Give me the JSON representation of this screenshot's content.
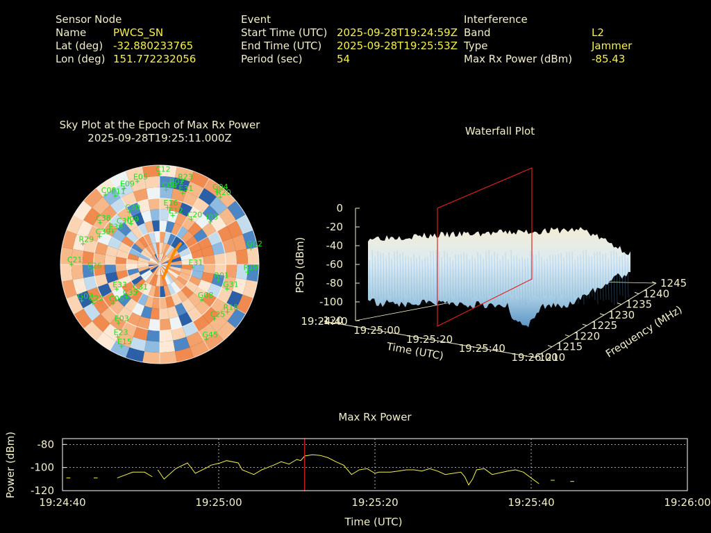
{
  "header": {
    "sensor": {
      "heading": "Sensor Node",
      "rows": [
        {
          "label": "Name",
          "value": "PWCS_SN"
        },
        {
          "label": "Lat (deg)",
          "value": "-32.880233765"
        },
        {
          "label": "Lon (deg)",
          "value": "151.772232056"
        }
      ]
    },
    "event": {
      "heading": "Event",
      "rows": [
        {
          "label": "Start Time (UTC)",
          "value": "2025-09-28T19:24:59Z"
        },
        {
          "label": "End Time (UTC)",
          "value": "2025-09-28T19:25:53Z"
        },
        {
          "label": "Period (sec)",
          "value": "54"
        }
      ]
    },
    "interference": {
      "heading": "Interference",
      "rows": [
        {
          "label": "Band",
          "value": "L2"
        },
        {
          "label": "Type",
          "value": "Jammer"
        },
        {
          "label": "Max Rx Power (dBm)",
          "value": "-85.43"
        }
      ]
    }
  },
  "skyplot": {
    "title_line1": "Sky Plot at the Epoch of Max Rx Power",
    "title_line2": "2025-09-28T19:25:11.000Z",
    "label_color": "#20e020",
    "satellites": [
      {
        "id": "C12",
        "az": 0,
        "el": 8
      },
      {
        "id": "E05",
        "az": 345,
        "el": 12
      },
      {
        "id": "E09",
        "az": 335,
        "el": 14
      },
      {
        "id": "C08",
        "az": 322,
        "el": 10
      },
      {
        "id": "E11",
        "az": 327,
        "el": 16
      },
      {
        "id": "R02",
        "az": 10,
        "el": 18
      },
      {
        "id": "R23",
        "az": 15,
        "el": 12
      },
      {
        "id": "C08",
        "az": 5,
        "el": 22
      },
      {
        "id": "E31",
        "az": 18,
        "el": 22
      },
      {
        "id": "G04",
        "az": 38,
        "el": 6
      },
      {
        "id": "R20",
        "az": 42,
        "el": 8
      },
      {
        "id": "C38",
        "az": 305,
        "el": 24
      },
      {
        "id": "C30",
        "az": 330,
        "el": 35
      },
      {
        "id": "E16",
        "az": 8,
        "el": 38
      },
      {
        "id": "E12",
        "az": 15,
        "el": 44
      },
      {
        "id": "C30",
        "az": 315,
        "el": 40
      },
      {
        "id": "I09",
        "az": 325,
        "el": 45
      },
      {
        "id": "C20",
        "az": 35,
        "el": 40
      },
      {
        "id": "I03",
        "az": 50,
        "el": 30
      },
      {
        "id": "E36",
        "az": 305,
        "el": 38
      },
      {
        "id": "C39",
        "az": 295,
        "el": 30
      },
      {
        "id": "R29",
        "az": 285,
        "el": 18
      },
      {
        "id": "G02",
        "az": 80,
        "el": 6
      },
      {
        "id": "R19",
        "az": 95,
        "el": 10
      },
      {
        "id": "E31",
        "az": 95,
        "el": 60
      },
      {
        "id": "E26",
        "az": 265,
        "el": 28
      },
      {
        "id": "R01",
        "az": 105,
        "el": 35
      },
      {
        "id": "C21",
        "az": 270,
        "el": 10
      },
      {
        "id": "G31",
        "az": 110,
        "el": 25
      },
      {
        "id": "E33",
        "az": 240,
        "el": 45
      },
      {
        "id": "C22",
        "az": 240,
        "el": 20
      },
      {
        "id": "G08",
        "az": 130,
        "el": 40
      },
      {
        "id": "R18",
        "az": 125,
        "el": 15
      },
      {
        "id": "C06",
        "az": 230,
        "el": 35
      },
      {
        "id": "E03",
        "az": 215,
        "el": 25
      },
      {
        "id": "E23",
        "az": 210,
        "el": 14
      },
      {
        "id": "C35",
        "az": 225,
        "el": 48
      },
      {
        "id": "G45",
        "az": 148,
        "el": 10
      },
      {
        "id": "C25",
        "az": 135,
        "el": 20
      },
      {
        "id": "E15",
        "az": 205,
        "el": 8
      },
      {
        "id": "C31",
        "az": 220,
        "el": 58
      },
      {
        "id": "G03",
        "az": 245,
        "el": 12
      }
    ]
  },
  "waterfall": {
    "title": "Waterfall Plot",
    "zlabel": "PSD (dBm)",
    "xlabel": "Time (UTC)",
    "ylabel": "Frequency (MHz)",
    "z_ticks": [
      "0",
      "-20",
      "-40",
      "-60",
      "-80",
      "-100",
      "-120"
    ],
    "time_ticks": [
      "19:24:40",
      "19:25:00",
      "19:25:20",
      "19:25:40",
      "19:26:00"
    ],
    "freq_ticks": [
      "1210",
      "1215",
      "1220",
      "1225",
      "1230",
      "1235",
      "1240",
      "1245"
    ]
  },
  "chart_data": {
    "type": "line",
    "title": "Max Rx Power",
    "xlabel": "Time (UTC)",
    "ylabel": "Power (dBm)",
    "x_ticks": [
      "19:24:40",
      "19:25:00",
      "19:25:20",
      "19:25:40",
      "19:26:00"
    ],
    "y_ticks": [
      "-80",
      "-100",
      "-120"
    ],
    "xlim_sec": [
      0,
      80
    ],
    "ylim": [
      -120,
      -75
    ],
    "grid": true,
    "line_color": "#f7f24a",
    "marker_time_sec": 31,
    "marker_color": "#e02020",
    "series": [
      {
        "segment": [
          [
            0.5,
            -109
          ],
          [
            1,
            -109
          ]
        ]
      },
      {
        "segment": [
          [
            4,
            -109
          ],
          [
            4.5,
            -109
          ]
        ]
      },
      {
        "segment": [
          [
            7,
            -109
          ],
          [
            9,
            -104
          ],
          [
            10.5,
            -104
          ],
          [
            11.5,
            -108
          ]
        ]
      },
      {
        "segment": [
          [
            12.2,
            -102
          ],
          [
            13,
            -110
          ],
          [
            14.5,
            -101
          ],
          [
            16,
            -96
          ],
          [
            17,
            -105
          ],
          [
            18.5,
            -100
          ],
          [
            19,
            -98
          ],
          [
            20.2,
            -96
          ],
          [
            21,
            -94
          ],
          [
            22.5,
            -96
          ],
          [
            23,
            -102
          ],
          [
            24.5,
            -106
          ],
          [
            25.5,
            -102
          ],
          [
            27,
            -98
          ],
          [
            28,
            -95
          ],
          [
            29,
            -97
          ],
          [
            30,
            -93
          ],
          [
            30.5,
            -94
          ],
          [
            31,
            -90
          ],
          [
            32,
            -89
          ],
          [
            33,
            -89.5
          ],
          [
            34,
            -91.5
          ],
          [
            35,
            -95
          ],
          [
            36,
            -98
          ],
          [
            36.5,
            -102
          ],
          [
            37,
            -106
          ],
          [
            38,
            -102
          ],
          [
            39,
            -101
          ],
          [
            40,
            -105
          ],
          [
            40.5,
            -104
          ],
          [
            42,
            -104
          ],
          [
            43,
            -103
          ],
          [
            44,
            -102
          ],
          [
            45,
            -102
          ],
          [
            46,
            -103
          ],
          [
            47,
            -101
          ],
          [
            48,
            -103
          ],
          [
            49,
            -106
          ],
          [
            50,
            -105
          ],
          [
            51,
            -104
          ],
          [
            51.5,
            -108
          ],
          [
            52,
            -115
          ],
          [
            52.5,
            -110
          ],
          [
            53,
            -102
          ],
          [
            54,
            -101
          ],
          [
            55,
            -106
          ],
          [
            57,
            -103
          ],
          [
            58,
            -102
          ],
          [
            59,
            -104
          ],
          [
            60,
            -109
          ],
          [
            61,
            -114
          ]
        ]
      },
      {
        "segment": [
          [
            62.5,
            -111
          ],
          [
            63,
            -111
          ]
        ]
      },
      {
        "segment": [
          [
            65,
            -112
          ],
          [
            65.5,
            -112
          ]
        ]
      }
    ]
  }
}
